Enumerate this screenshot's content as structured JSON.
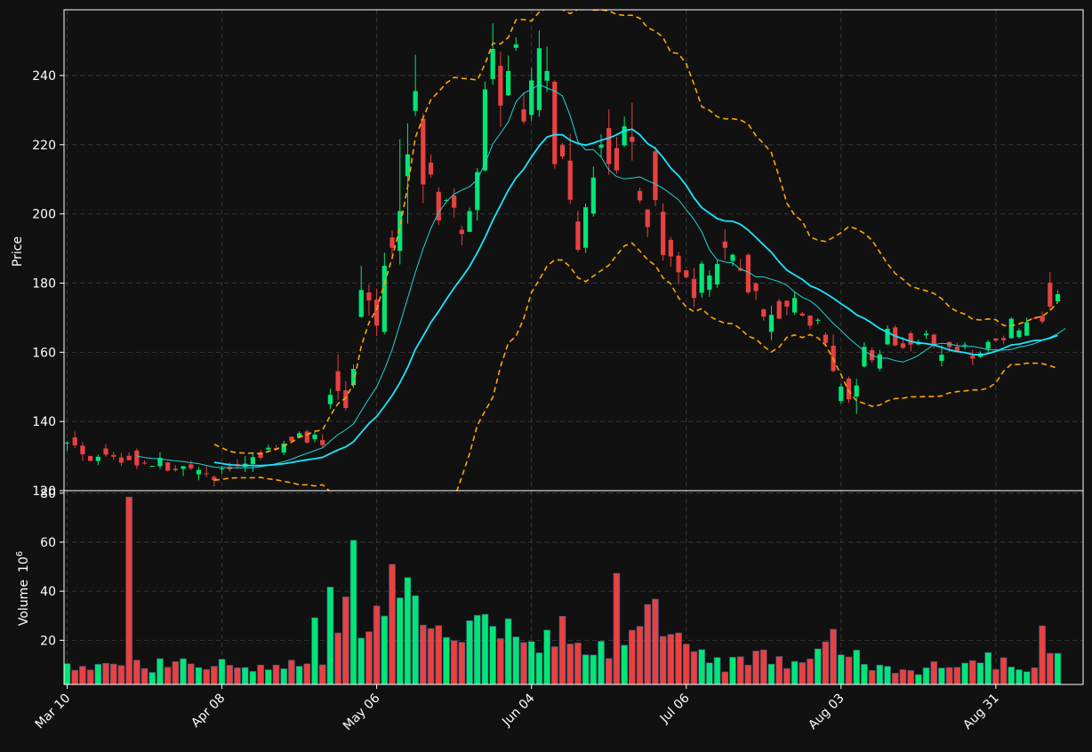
{
  "colors": {
    "background": "#111111",
    "up": "#00e676",
    "down": "#e84141",
    "sma_fast": "#22d3d3",
    "sma_slow": "#18e6ff",
    "bands": "#ffa500",
    "grid": "#3a3a3a",
    "text": "#ffffff"
  },
  "chart_data": {
    "type": "candlestick",
    "price_panel": {
      "ylabel": "Price",
      "ylim": [
        120,
        259
      ],
      "yticks": [
        120,
        140,
        160,
        180,
        200,
        220,
        240
      ],
      "grid": true
    },
    "volume_panel": {
      "ylabel": "Volume",
      "ylabel_unit": "10",
      "ylabel_unit_exp": "6",
      "ylim": [
        2,
        81
      ],
      "yticks": [
        20,
        40,
        60,
        80
      ],
      "grid": true
    },
    "x_ticks": [
      {
        "label": "Mar 10",
        "index": 0
      },
      {
        "label": "Apr 08",
        "index": 20
      },
      {
        "label": "May 06",
        "index": 40
      },
      {
        "label": "Jun 04",
        "index": 60
      },
      {
        "label": "Jul 06",
        "index": 80
      },
      {
        "label": "Aug 03",
        "index": 100
      },
      {
        "label": "Aug 31",
        "index": 120
      }
    ],
    "candles": [
      [
        133.9,
        133.9,
        131.5,
        134.3,
        10.5
      ],
      [
        135.4,
        133.1,
        132.3,
        137.1,
        7.8
      ],
      [
        133.0,
        130.5,
        128.6,
        134.0,
        9.4
      ],
      [
        130.0,
        128.6,
        128.5,
        130.1,
        7.9
      ],
      [
        128.6,
        129.8,
        127.3,
        130.5,
        10.2
      ],
      [
        132.2,
        130.4,
        129.8,
        133.5,
        10.6
      ],
      [
        130.3,
        129.8,
        128.9,
        131.3,
        10.3
      ],
      [
        129.6,
        128.1,
        127.1,
        130.9,
        9.7
      ],
      [
        130.1,
        128.8,
        128.7,
        131.1,
        78.4
      ],
      [
        131.6,
        127.3,
        126.2,
        132.2,
        11.9
      ],
      [
        128.1,
        127.9,
        127.5,
        128.8,
        8.5
      ],
      [
        127.1,
        127.2,
        127.1,
        127.2,
        6.9
      ],
      [
        127.1,
        129.5,
        126.2,
        131.1,
        12.5
      ],
      [
        128.2,
        125.8,
        125.6,
        128.3,
        9.0
      ],
      [
        126.3,
        125.9,
        125.5,
        127.4,
        11.3
      ],
      [
        126.3,
        127.1,
        124.2,
        127.1,
        12.5
      ],
      [
        127.6,
        126.5,
        125.9,
        128.7,
        10.4
      ],
      [
        124.7,
        126.0,
        123.0,
        126.8,
        8.9
      ],
      [
        125.0,
        124.8,
        123.9,
        127.2,
        8.1
      ],
      [
        124.0,
        123.0,
        121.2,
        124.4,
        9.4
      ],
      [
        126.4,
        126.4,
        124.9,
        127.1,
        12.3
      ],
      [
        126.9,
        126.2,
        125.5,
        128.2,
        9.8
      ],
      [
        127.7,
        127.6,
        126.4,
        129.1,
        8.8
      ],
      [
        126.9,
        127.8,
        125.4,
        130.0,
        8.9
      ],
      [
        127.7,
        129.7,
        125.4,
        131.2,
        7.3
      ],
      [
        131.1,
        129.5,
        128.9,
        131.8,
        9.9
      ],
      [
        131.9,
        132.4,
        131.0,
        133.3,
        8.0
      ],
      [
        132.3,
        131.9,
        131.6,
        133.2,
        9.9
      ],
      [
        131.0,
        133.6,
        130.3,
        134.4,
        8.4
      ],
      [
        135.6,
        134.3,
        134.2,
        135.6,
        11.9
      ],
      [
        135.3,
        136.6,
        135.2,
        137.2,
        9.4
      ],
      [
        137.1,
        133.9,
        133.6,
        137.6,
        10.4
      ],
      [
        134.9,
        136.2,
        134.0,
        137.2,
        29.2
      ],
      [
        134.6,
        133.2,
        132.6,
        136.3,
        10.0
      ],
      [
        145.0,
        147.7,
        143.6,
        149.5,
        41.7
      ],
      [
        154.5,
        148.8,
        146.3,
        159.5,
        23.0
      ],
      [
        149.0,
        143.9,
        143.2,
        151.6,
        37.7
      ],
      [
        150.5,
        155.2,
        149.7,
        156.5,
        60.8
      ],
      [
        170.2,
        178.0,
        170.1,
        185.0,
        20.9
      ],
      [
        177.3,
        175.0,
        170.6,
        179.6,
        23.5
      ],
      [
        175.2,
        167.7,
        164.7,
        178.4,
        34.0
      ],
      [
        165.9,
        185.0,
        165.2,
        188.8,
        29.9
      ],
      [
        193.2,
        190.2,
        187.2,
        195.2,
        51.0
      ],
      [
        189.3,
        200.8,
        185.4,
        221.6,
        37.3
      ],
      [
        210.9,
        217.2,
        197.2,
        226.2,
        45.6
      ],
      [
        229.8,
        235.5,
        228.3,
        246.0,
        38.2
      ],
      [
        227.5,
        208.5,
        203.1,
        229.1,
        26.2
      ],
      [
        214.8,
        211.4,
        210.5,
        217.2,
        24.8
      ],
      [
        206.4,
        198.1,
        196.8,
        207.7,
        26.0
      ],
      [
        204.0,
        204.0,
        203.7,
        204.4,
        21.2
      ],
      [
        205.3,
        201.8,
        198.9,
        207.4,
        19.9
      ],
      [
        195.4,
        194.2,
        191.0,
        196.5,
        19.2
      ],
      [
        194.8,
        200.8,
        194.8,
        201.8,
        28.0
      ],
      [
        201.1,
        212.1,
        198.1,
        213.3,
        30.2
      ],
      [
        212.6,
        236.0,
        212.2,
        238.3,
        30.6
      ],
      [
        239.0,
        247.7,
        237.3,
        255.1,
        25.7
      ],
      [
        242.8,
        231.3,
        225.2,
        246.9,
        20.7
      ],
      [
        234.3,
        241.3,
        234.1,
        245.8,
        28.8
      ],
      [
        248.0,
        249.0,
        247.2,
        251.0,
        21.4
      ],
      [
        230.2,
        226.7,
        226.0,
        235.1,
        19.1
      ],
      [
        228.6,
        238.6,
        226.8,
        242.2,
        19.5
      ],
      [
        230.0,
        247.9,
        228.1,
        253.0,
        14.9
      ],
      [
        238.5,
        241.3,
        235.2,
        248.4,
        24.2
      ],
      [
        238.2,
        214.4,
        213.1,
        238.6,
        17.4
      ],
      [
        219.9,
        216.6,
        215.8,
        220.5,
        29.8
      ],
      [
        215.4,
        204.1,
        202.9,
        223.2,
        18.5
      ],
      [
        197.8,
        189.6,
        188.9,
        200.9,
        18.9
      ],
      [
        190.2,
        201.9,
        188.7,
        203.0,
        14.1
      ],
      [
        200.1,
        210.5,
        199.2,
        213.7,
        14.0
      ],
      [
        219.1,
        220.0,
        216.5,
        223.0,
        19.6
      ],
      [
        224.8,
        214.4,
        211.3,
        230.2,
        12.6
      ],
      [
        219.0,
        212.6,
        211.6,
        222.3,
        47.3
      ],
      [
        219.8,
        225.3,
        219.4,
        228.2,
        18.0
      ],
      [
        222.3,
        220.8,
        215.4,
        232.1,
        24.1
      ],
      [
        206.6,
        203.9,
        203.1,
        207.6,
        25.7
      ],
      [
        201.3,
        196.2,
        193.3,
        201.3,
        34.6
      ],
      [
        218.1,
        204.0,
        202.3,
        219.5,
        36.8
      ],
      [
        200.6,
        188.1,
        186.5,
        203.0,
        21.6
      ],
      [
        192.5,
        187.7,
        184.8,
        193.3,
        22.4
      ],
      [
        187.9,
        183.1,
        179.6,
        189.0,
        23.0
      ],
      [
        183.7,
        181.7,
        181.3,
        183.8,
        18.4
      ],
      [
        181.2,
        175.7,
        173.0,
        184.4,
        15.4
      ],
      [
        177.2,
        185.6,
        175.8,
        186.4,
        16.2
      ],
      [
        178.1,
        182.2,
        176.0,
        183.7,
        10.8
      ],
      [
        179.6,
        185.5,
        178.6,
        186.5,
        13.0
      ],
      [
        192.0,
        190.2,
        186.6,
        195.5,
        7.1
      ],
      [
        186.4,
        188.2,
        184.9,
        188.5,
        13.1
      ],
      [
        184.2,
        183.6,
        183.4,
        187.0,
        13.3
      ],
      [
        188.2,
        177.3,
        176.8,
        188.5,
        9.9
      ],
      [
        179.9,
        177.7,
        175.1,
        180.2,
        15.6
      ],
      [
        172.4,
        170.3,
        169.1,
        172.6,
        16.1
      ],
      [
        165.9,
        170.8,
        163.5,
        173.4,
        10.3
      ],
      [
        174.8,
        169.7,
        169.6,
        175.5,
        13.4
      ],
      [
        174.9,
        173.2,
        170.7,
        175.0,
        8.5
      ],
      [
        171.5,
        175.7,
        170.8,
        177.6,
        11.4
      ],
      [
        171.2,
        170.6,
        170.4,
        171.7,
        10.9
      ],
      [
        170.6,
        167.7,
        166.6,
        170.7,
        12.4
      ],
      [
        169.1,
        169.4,
        168.0,
        169.9,
        16.5
      ],
      [
        165.1,
        162.7,
        161.6,
        165.8,
        19.4
      ],
      [
        161.9,
        154.6,
        154.2,
        165.2,
        24.5
      ],
      [
        145.9,
        150.1,
        145.1,
        151.0,
        14.1
      ],
      [
        152.4,
        146.4,
        145.3,
        153.0,
        13.2
      ],
      [
        147.2,
        150.4,
        142.2,
        152.4,
        16.0
      ],
      [
        155.9,
        161.6,
        155.6,
        162.9,
        10.2
      ],
      [
        160.6,
        157.7,
        156.9,
        161.4,
        7.7
      ],
      [
        155.3,
        159.4,
        154.6,
        160.7,
        9.9
      ],
      [
        162.3,
        166.8,
        162.0,
        167.8,
        9.4
      ],
      [
        167.2,
        162.0,
        161.7,
        167.8,
        6.6
      ],
      [
        162.6,
        161.3,
        161.0,
        164.4,
        8.0
      ],
      [
        165.5,
        162.2,
        160.3,
        166.1,
        7.7
      ],
      [
        162.3,
        163.0,
        162.0,
        163.7,
        6.0
      ],
      [
        164.9,
        165.4,
        163.8,
        166.4,
        8.8
      ],
      [
        165.1,
        162.1,
        161.2,
        165.4,
        11.3
      ],
      [
        157.5,
        159.3,
        155.9,
        162.0,
        8.7
      ],
      [
        163.0,
        161.5,
        160.0,
        163.1,
        8.9
      ],
      [
        161.6,
        160.4,
        160.0,
        162.8,
        9.0
      ],
      [
        162.1,
        162.2,
        160.8,
        163.0,
        10.7
      ],
      [
        159.0,
        158.2,
        156.3,
        160.7,
        11.7
      ],
      [
        158.7,
        159.7,
        158.4,
        160.3,
        10.8
      ],
      [
        161.0,
        163.0,
        159.5,
        163.6,
        15.0
      ],
      [
        164.0,
        163.4,
        162.9,
        164.0,
        8.1
      ],
      [
        164.1,
        163.5,
        162.3,
        164.8,
        12.9
      ],
      [
        164.1,
        169.7,
        163.9,
        170.1,
        9.1
      ],
      [
        164.4,
        166.3,
        164.0,
        166.9,
        8.0
      ],
      [
        164.8,
        168.7,
        164.7,
        170.0,
        7.2
      ],
      [
        169.9,
        169.8,
        169.6,
        170.2,
        8.8
      ],
      [
        170.5,
        168.9,
        168.3,
        171.8,
        25.9
      ],
      [
        180.1,
        173.2,
        172.0,
        183.2,
        14.7
      ],
      [
        174.7,
        176.8,
        174.5,
        177.9,
        14.7
      ]
    ],
    "sma_fast": [
      null,
      null,
      null,
      null,
      null,
      null,
      null,
      null,
      null,
      130.0,
      129.6,
      129.3,
      129.2,
      128.9,
      128.6,
      128.4,
      128.1,
      127.8,
      127.3,
      126.8,
      126.7,
      126.6,
      126.6,
      126.6,
      126.6,
      126.9,
      127.3,
      127.8,
      128.4,
      129.1,
      130.0,
      130.8,
      131.6,
      132.4,
      134.3,
      136.2,
      137.6,
      139.3,
      143.0,
      146.6,
      150.0,
      155.0,
      160.8,
      168.1,
      175.6,
      183.1,
      189.9,
      195.8,
      200.5,
      203.5,
      205.7,
      206.9,
      207.9,
      209.9,
      214.6,
      220.2,
      223.3,
      226.6,
      232.4,
      234.9,
      236.0,
      237.4,
      236.4,
      235.5,
      234.1,
      228.4,
      220.9,
      218.5,
      218.6,
      216.4,
      212.7,
      210.8,
      210.1,
      210.4,
      210.7,
      209.6,
      208.7,
      207.4,
      205.8,
      204.1,
      201.2,
      198.4,
      194.8,
      189.6,
      186.7,
      186.1,
      185.8,
      184.0,
      183.2,
      181.8,
      181.8,
      181.1,
      180.4,
      179.4,
      177.4,
      175.9,
      174.9,
      173.1,
      170.7,
      168.3,
      166.3,
      164.1,
      162.2,
      160.4,
      159.1,
      158.3,
      158.3,
      157.6,
      157.2,
      158.0,
      159.1,
      160.7,
      162.2,
      162.6,
      162.4,
      161.9,
      161.7,
      161.7,
      161.3,
      160.7,
      160.7,
      160.6,
      160.8,
      161.5,
      161.9,
      162.5,
      163.5,
      164.3,
      165.4,
      166.9
    ]
  }
}
